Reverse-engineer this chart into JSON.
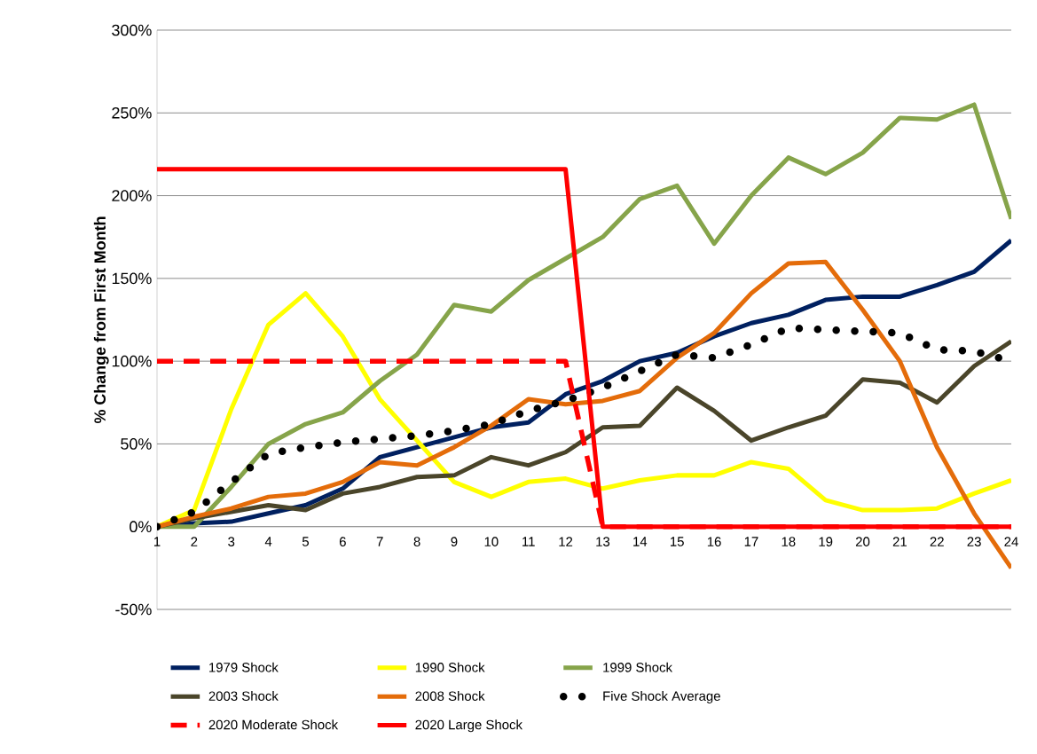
{
  "chart_data": {
    "type": "line",
    "ylabel": "% Change from First Month",
    "categories": [
      "1",
      "2",
      "3",
      "4",
      "5",
      "6",
      "7",
      "8",
      "9",
      "10",
      "11",
      "12",
      "13",
      "14",
      "15",
      "16",
      "17",
      "18",
      "19",
      "20",
      "21",
      "22",
      "23",
      "24"
    ],
    "ylim": [
      -50,
      300
    ],
    "yticks": [
      {
        "value": -50,
        "label": "-50%"
      },
      {
        "value": 0,
        "label": "0%"
      },
      {
        "value": 50,
        "label": "50%"
      },
      {
        "value": 100,
        "label": "100%"
      },
      {
        "value": 150,
        "label": "150%"
      },
      {
        "value": 200,
        "label": "200%"
      },
      {
        "value": 250,
        "label": "250%"
      },
      {
        "value": 300,
        "label": "300%"
      }
    ],
    "grid": "y",
    "legend": "bottom",
    "series": [
      {
        "name": "1979 Shock",
        "color": "#002060",
        "line_style": "solid",
        "values": [
          0,
          2,
          3,
          8,
          13,
          23,
          42,
          48,
          54,
          60,
          63,
          80,
          88,
          100,
          105,
          115,
          123,
          128,
          137,
          139,
          139,
          146,
          154,
          173
        ]
      },
      {
        "name": "1990 Shock",
        "color": "#ffff00",
        "line_style": "solid",
        "values": [
          0,
          10,
          71,
          122,
          141,
          115,
          77,
          52,
          27,
          18,
          27,
          29,
          23,
          28,
          31,
          31,
          39,
          35,
          16,
          10,
          10,
          11,
          20,
          28
        ]
      },
      {
        "name": "1999 Shock",
        "color": "#86a44a",
        "line_style": "solid",
        "values": [
          0,
          0,
          24,
          50,
          62,
          69,
          88,
          104,
          134,
          130,
          149,
          162,
          175,
          198,
          206,
          171,
          200,
          223,
          213,
          226,
          247,
          246,
          255,
          186
        ]
      },
      {
        "name": "2003 Shock",
        "color": "#4a452a",
        "line_style": "solid",
        "values": [
          0,
          5,
          9,
          13,
          10,
          20,
          24,
          30,
          31,
          42,
          37,
          45,
          60,
          61,
          84,
          70,
          52,
          60,
          67,
          89,
          87,
          75,
          97,
          112
        ]
      },
      {
        "name": "2008 Shock",
        "color": "#e46c0a",
        "line_style": "solid",
        "values": [
          0,
          6,
          11,
          18,
          20,
          27,
          39,
          37,
          48,
          61,
          77,
          74,
          76,
          82,
          102,
          117,
          141,
          159,
          160,
          131,
          100,
          48,
          8,
          -25
        ]
      },
      {
        "name": "Five Shock Average",
        "color": "#000000",
        "line_style": "dotted",
        "values": [
          0,
          9,
          27,
          44,
          48,
          51,
          53,
          55,
          58,
          62,
          70,
          76,
          84,
          94,
          104,
          102,
          110,
          120,
          119,
          118,
          117,
          107,
          106,
          100
        ]
      },
      {
        "name": "2020 Moderate Shock",
        "color": "#ff0000",
        "line_style": "dashed",
        "values": [
          100,
          100,
          100,
          100,
          100,
          100,
          100,
          100,
          100,
          100,
          100,
          100,
          0,
          0,
          0,
          0,
          0,
          0,
          0,
          0,
          0,
          0,
          0,
          0
        ]
      },
      {
        "name": "2020 Large Shock",
        "color": "#ff0000",
        "line_style": "solid",
        "values": [
          216,
          216,
          216,
          216,
          216,
          216,
          216,
          216,
          216,
          216,
          216,
          216,
          0,
          0,
          0,
          0,
          0,
          0,
          0,
          0,
          0,
          0,
          0,
          0
        ]
      }
    ]
  }
}
